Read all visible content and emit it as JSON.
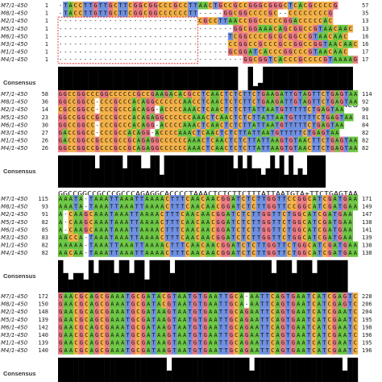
{
  "colors": {
    "A": "#6cc644",
    "C": "#f2b046",
    "G": "#e97a84",
    "T": "#6f8fe0",
    "mismatch": "#ffffff",
    "gap": "#ffffff",
    "bar": "#000000",
    "frame": "#d11"
  },
  "consensus_label": "Consensus",
  "blocks": [
    {
      "rows": [
        {
          "name": "M7/1-450",
          "start": "1",
          "end": "57",
          "seq": "-TACCTTGTTGCTTCGGCGGCCCGCCTTAACTGCCGCCGGGCGGGCTCACGCCCCG"
        },
        {
          "name": "M8/1-450",
          "start": "1",
          "end": "35",
          "seq": "-TACCTTGTTGCTTCGGCGGCCCCCCTT-----GGCGGCCCCGC--CCCCCCCCG"
        },
        {
          "name": "M2/1-450",
          "start": "1",
          "end": "13",
          "seq": "----------------------------CGCCTTAACCGGCCCCCGGACCCCCAC"
        },
        {
          "name": "M5/1-450",
          "start": "1",
          "end": "13",
          "seq": "-----------------------------------GGCGGAAACAGCGGCCGTAACAAC"
        },
        {
          "name": "M6/1-450",
          "start": "1",
          "end": "16",
          "seq": "----------------------------------TCGGCCCCGCGCGGCCGTAACAAC"
        },
        {
          "name": "M3/1-450",
          "start": "1",
          "end": "16",
          "seq": "----------------------------------CCGGCCGCCCGCCGGCCGGTAACAAC"
        },
        {
          "name": "M1/1-450",
          "start": "1",
          "end": "17",
          "seq": "----------------------------------GCGGATCACCCGGCCCGTAACAAC"
        },
        {
          "name": "M4/1-450",
          "start": "1",
          "end": "17",
          "seq": "-------------------------------------GGCGGTCACCCGCCCCGTAAAAG"
        }
      ],
      "bars": [
        100,
        100,
        100,
        100,
        100,
        100,
        100,
        100,
        100,
        100,
        100,
        100,
        100,
        100,
        100,
        100,
        100,
        100,
        100,
        100,
        100,
        100,
        100,
        100,
        100,
        100,
        100,
        100,
        100,
        100,
        100,
        100,
        100,
        100,
        100,
        100,
        15,
        15,
        100,
        40,
        50,
        100,
        100,
        100,
        100,
        100,
        100,
        100,
        100,
        100,
        100,
        100,
        100,
        100,
        100,
        100,
        100,
        100,
        100
      ],
      "consensus": "TTACCTTGTTGCTTCGGCGGCCCGCCTT+GGCGG+++CAG+CGG+CCCG++ACAACG"
    },
    {
      "rows": [
        {
          "name": "M7/1-450",
          "start": "58",
          "end": "114",
          "seq": "GGCCGGCCCGGCCCCCCGCCGAAGACACGCCTCAACTCTCTTCTGAAGATTGTAGTTCTGAGTAA"
        },
        {
          "name": "M8/1-450",
          "start": "36",
          "end": "92",
          "seq": "GGCCGGCC-CCCGCCCACAGGCCCCCCAACCTCAACTCTCTTCTGAAGATTGTAGTTCTGAGTAA"
        },
        {
          "name": "M2/1-450",
          "start": "14",
          "end": "90",
          "seq": "CGCCGGCC-CCCGCCCACAGG-ACCCCAAACTCAACTCTCTTATTAATGTTTTTCTGAGTAA"
        },
        {
          "name": "M5/1-450",
          "start": "23",
          "end": "81",
          "seq": "GGCCGGCCGCCCGCCCACAGAGGCCCCCCAAACTCAACTCTCTTATTAATGTTTTTCTGAGTAA"
        },
        {
          "name": "M6/1-450",
          "start": "30",
          "end": "84",
          "seq": "GGCCGGCC-CCCGCCCACAGG-ACCCCAAACTCAACTCTCTTATTAATGTTTTTCTGAGTAA"
        },
        {
          "name": "M3/1-450",
          "start": "27",
          "end": "82",
          "seq": "GACCGGCC-CCCGCCACAGG-ACCCCAAACTCAACTCTCTTATTAATGTTTTTCTGAGTAA"
        },
        {
          "name": "M1/1-450",
          "start": "26",
          "end": "82",
          "seq": "GACCGGCCGCCCGCCGCAGAGGCCCCCCAAACTCAACTCTCTTATTAAGTGTAACTTCTGAGTAA"
        },
        {
          "name": "M4/1-450",
          "start": "26",
          "end": "82",
          "seq": "GGCCGGCCGCCCGCCGCAGAGGCCCCCCAAACTCAACTCTCTTATTAAGTGTAACTTCTGAGTAA"
        }
      ],
      "bars": [
        100,
        100,
        100,
        100,
        100,
        100,
        100,
        100,
        60,
        100,
        100,
        100,
        100,
        100,
        60,
        100,
        100,
        100,
        60,
        60,
        100,
        100,
        40,
        100,
        100,
        100,
        100,
        100,
        100,
        100,
        100,
        100,
        100,
        100,
        100,
        100,
        100,
        100,
        60,
        100,
        60,
        100,
        60,
        60,
        40,
        60,
        100,
        60,
        100,
        40,
        100,
        40,
        60,
        40,
        100,
        100,
        100,
        100
      ],
      "consensus": "GGCCGGCCGCCCGCCCAGAGGCACCCCTAAACTCTCTTCTTTATTAATGTA+TTCTGAGTAA"
    },
    {
      "rows": [
        {
          "name": "M7/1-450",
          "start": "115",
          "end": "171",
          "seq": "AAATA-TAAATTAAATTAAAACTTTCAACAACGGATCTCTTGGTTCCGGCATCGATGAA"
        },
        {
          "name": "M8/1-450",
          "start": "93",
          "end": "149",
          "seq": "AAATA-TAAATTAAATTAAAACTTTCAACAACGGATCTCTTGGTTCCGGCATCGATGAA"
        },
        {
          "name": "M2/1-450",
          "start": "91",
          "end": "147",
          "seq": "A-CAAGCAAATAAATTAAAACTTTCAACAACGGATCTCTTGGTTCTGGCATCGATGAA"
        },
        {
          "name": "M5/1-450",
          "start": "82",
          "end": "138",
          "seq": "A-CAAGCAAATAAATTAAAACTTTCAACAACGGATCTCTTGGTTCTGGCATCGATGAA"
        },
        {
          "name": "M6/1-450",
          "start": "85",
          "end": "141",
          "seq": "A-CAAGCAAATAAATTAAAACTTTCAACAACGGATCTCTTGGTTCTGGCATCGATGAA"
        },
        {
          "name": "M3/1-450",
          "start": "83",
          "end": "139",
          "seq": "AACCA-TAAATAAATTAAAACTTTCAACAACGGATCTCTTGGTTCTGGCATCGATGAA"
        },
        {
          "name": "M1/1-450",
          "start": "82",
          "end": "138",
          "seq": "AAAAA-TAAATTAAATTAAAACTTTCAACAACGGATCTCTTGGTTCTGGCATCGATGAA"
        },
        {
          "name": "M4/1-450",
          "start": "82",
          "end": "138",
          "seq": "AACAA-TAAATTAAATTAAAACTTTCAACAACGGATCTCTTGGTTCTGGCATCGATGAA"
        }
      ],
      "bars": [
        100,
        60,
        40,
        60,
        60,
        40,
        100,
        60,
        100,
        100,
        100,
        60,
        100,
        100,
        60,
        100,
        100,
        40,
        100,
        100,
        100,
        100,
        60,
        100,
        100,
        100,
        100,
        100,
        100,
        100,
        100,
        100,
        100,
        100,
        100,
        100,
        100,
        100,
        100,
        100,
        100,
        100,
        60,
        100,
        100,
        100,
        60,
        100,
        100,
        100,
        60,
        100,
        100,
        100,
        100,
        100,
        100
      ],
      "consensus": "AACAAG+AAATAAATTAAAACTTTCAACAACGGATCTCTTGGTTCTGGCATCGATGAA"
    },
    {
      "rows": [
        {
          "name": "M7/1-450",
          "start": "172",
          "end": "228",
          "seq": "GAACGCAGCGAAATGCGATACGTAATGTGAATTGCA-AATTCAGTGAATCATCGAGTC"
        },
        {
          "name": "M8/1-450",
          "start": "150",
          "end": "206",
          "seq": "GAACGCAGCGAAATGCGATACGTAATGTGAATTGCA-AATTCAGTGAATCATCGAGTC"
        },
        {
          "name": "M2/1-450",
          "start": "148",
          "end": "204",
          "seq": "GAACGCAGCGAAATGCGATAAGTAATGTGAATTGCAGAATTCAGTGAATCATCGAATC"
        },
        {
          "name": "M5/1-450",
          "start": "139",
          "end": "195",
          "seq": "GAACGCAGCGAAATGCGATAAGTAATGTGAATTGCAGAATTCAGTGAATCATCGAATC"
        },
        {
          "name": "M6/1-450",
          "start": "142",
          "end": "198",
          "seq": "GAACGCAGCGAAATGCGATAAGTAATGTGAATTGCAGAATTCAGTGAATCATCGAATC"
        },
        {
          "name": "M3/1-450",
          "start": "140",
          "end": "196",
          "seq": "GAACGCAGCGAAATGCGATAAGTAATGTGAATTGCAGAATTCAGTGAATCATCGAATC"
        },
        {
          "name": "M1/1-450",
          "start": "139",
          "end": "195",
          "seq": "GAACGCAGCGAAATGCGATAAGTAATGTGAATTGCAGAATTCAGTGAATCATCGAATC"
        },
        {
          "name": "M4/1-450",
          "start": "140",
          "end": "196",
          "seq": "GAACGCAGCGAAATGCGATAAGTAATGTGAATTGCAGAATTCAGTGAATCATCGAATC"
        }
      ],
      "bars": [
        100,
        100,
        100,
        100,
        100,
        100,
        100,
        100,
        100,
        100,
        100,
        100,
        100,
        100,
        100,
        100,
        100,
        100,
        100,
        100,
        100,
        60,
        100,
        100,
        100,
        100,
        100,
        100,
        100,
        100,
        100,
        100,
        100,
        100,
        100,
        100,
        100,
        60,
        100,
        100,
        100,
        100,
        100,
        100,
        100,
        100,
        100,
        100,
        100,
        100,
        100,
        100,
        100,
        100,
        100,
        60,
        100,
        100
      ],
      "consensus": "GAACGCAGCGAAATGCGATAAGTAATGTGAATTGCAGAATTCAGTGAATCATCGAATC"
    }
  ]
}
